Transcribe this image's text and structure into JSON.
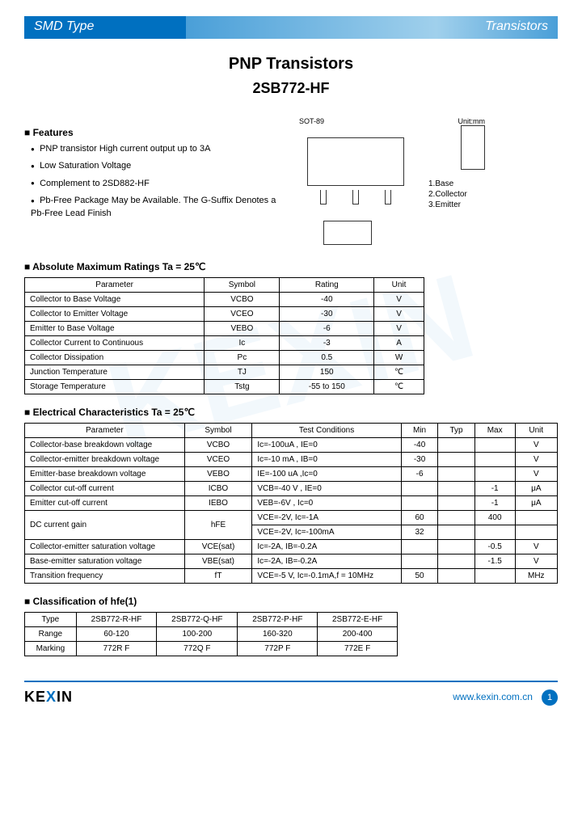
{
  "header": {
    "left": "SMD Type",
    "right": "Transistors"
  },
  "title": {
    "line1": "PNP  Transistors",
    "line2": "2SB772-HF"
  },
  "features": {
    "heading": "Features",
    "items": [
      "PNP transistor High current output up to 3A",
      "Low Saturation Voltage",
      "Complement to 2SD882-HF",
      "Pb-Free Package May be Available. The G-Suffix Denotes a Pb-Free Lead Finish"
    ]
  },
  "package": {
    "label": "SOT-89",
    "unit": "Unit:mm",
    "pins": [
      "1.Base",
      "2.Collector",
      "3.Emitter"
    ]
  },
  "abs_max": {
    "heading": "Absolute Maximum Ratings Ta = 25℃",
    "columns": [
      "Parameter",
      "Symbol",
      "Rating",
      "Unit"
    ],
    "rows": [
      [
        "Collector to Base Voltage",
        "VCBO",
        "-40",
        "V"
      ],
      [
        "Collector to Emitter Voltage",
        "VCEO",
        "-30",
        "V"
      ],
      [
        "Emitter to Base Voltage",
        "VEBO",
        "-6",
        "V"
      ],
      [
        "Collector Current to Continuous",
        "Ic",
        "-3",
        "A"
      ],
      [
        "Collector Dissipation",
        "Pc",
        "0.5",
        "W"
      ],
      [
        "Junction Temperature",
        "TJ",
        "150",
        "℃"
      ],
      [
        "Storage Temperature",
        "Tstg",
        "-55 to 150",
        "℃"
      ]
    ]
  },
  "elec": {
    "heading": "Electrical Characteristics Ta = 25℃",
    "columns": [
      "Parameter",
      "Symbol",
      "Test Conditions",
      "Min",
      "Typ",
      "Max",
      "Unit"
    ],
    "rows": [
      {
        "param": "Collector-base breakdown voltage",
        "sym": "VCBO",
        "cond": "Ic=-100uA , IE=0",
        "min": "-40",
        "typ": "",
        "max": "",
        "unit": "V"
      },
      {
        "param": "Collector-emitter breakdown voltage",
        "sym": "VCEO",
        "cond": "Ic=-10 mA , IB=0",
        "min": "-30",
        "typ": "",
        "max": "",
        "unit": "V"
      },
      {
        "param": "Emitter-base breakdown voltage",
        "sym": "VEBO",
        "cond": "IE=-100 uA ,Ic=0",
        "min": "-6",
        "typ": "",
        "max": "",
        "unit": "V"
      },
      {
        "param": "Collector cut-off current",
        "sym": "ICBO",
        "cond": "VCB=-40 V , IE=0",
        "min": "",
        "typ": "",
        "max": "-1",
        "unit": "μA"
      },
      {
        "param": "Emitter cut-off current",
        "sym": "IEBO",
        "cond": "VEB=-6V , Ic=0",
        "min": "",
        "typ": "",
        "max": "-1",
        "unit": "μA"
      },
      {
        "param": "DC current gain",
        "sym": "hFE",
        "cond": "VCE=-2V, Ic=-1A",
        "min": "60",
        "typ": "",
        "max": "400",
        "unit": "",
        "rowspan": 2
      },
      {
        "param": "",
        "sym": "",
        "cond": "VCE=-2V, Ic=-100mA",
        "min": "32",
        "typ": "",
        "max": "",
        "unit": ""
      },
      {
        "param": "Collector-emitter saturation voltage",
        "sym": "VCE(sat)",
        "cond": "Ic=-2A, IB=-0.2A",
        "min": "",
        "typ": "",
        "max": "-0.5",
        "unit": "V"
      },
      {
        "param": "Base-emitter saturation voltage",
        "sym": "VBE(sat)",
        "cond": "Ic=-2A, IB=-0.2A",
        "min": "",
        "typ": "",
        "max": "-1.5",
        "unit": "V"
      },
      {
        "param": "Transition frequency",
        "sym": "fT",
        "cond": "VCE=-5 V, Ic=-0.1mA,f = 10MHz",
        "min": "50",
        "typ": "",
        "max": "",
        "unit": "MHz"
      }
    ]
  },
  "classification": {
    "heading": "Classification of hfe(1)",
    "columns": [
      "Type",
      "2SB772-R-HF",
      "2SB772-Q-HF",
      "2SB772-P-HF",
      "2SB772-E-HF"
    ],
    "rows": [
      [
        "Range",
        "60-120",
        "100-200",
        "160-320",
        "200-400"
      ],
      [
        "Marking",
        "772R F",
        "772Q F",
        "772P F",
        "772E F"
      ]
    ]
  },
  "footer": {
    "logo": "KEXIN",
    "url": "www.kexin.com.cn",
    "page": "1"
  },
  "colors": {
    "brand": "#0070c0",
    "border": "#000000",
    "bg": "#ffffff"
  }
}
